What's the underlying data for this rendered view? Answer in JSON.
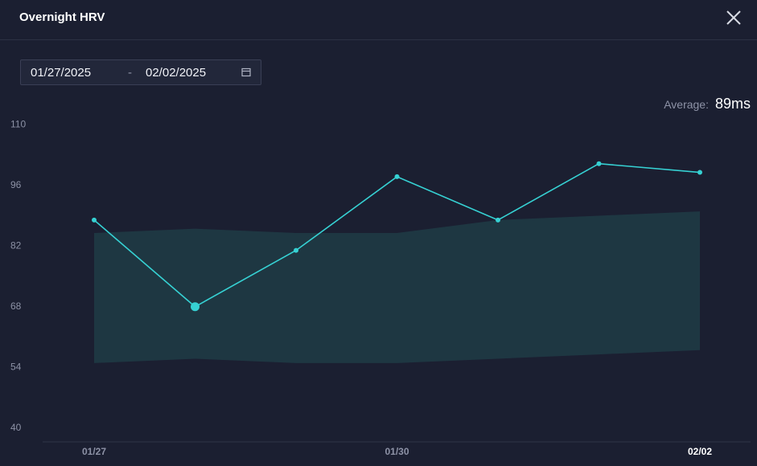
{
  "header": {
    "title": "Overnight HRV"
  },
  "date_range": {
    "start": "01/27/2025",
    "separator": "-",
    "end": "02/02/2025"
  },
  "average": {
    "label": "Average:",
    "value": "89ms"
  },
  "chart_data": {
    "type": "line",
    "categories": [
      "01/27",
      null,
      null,
      "01/30",
      null,
      null,
      "02/02"
    ],
    "values": [
      88,
      68,
      81,
      98,
      88,
      101,
      99
    ],
    "band_high": [
      85,
      86,
      85,
      85,
      88,
      89,
      90
    ],
    "band_low": [
      55,
      56,
      55,
      55,
      56,
      57,
      58
    ],
    "color": "#36d1d3",
    "band_color": "#1f3a45",
    "highlight_index": 1,
    "ylim": [
      37,
      113
    ],
    "yticks": [
      40,
      54,
      68,
      82,
      96,
      110
    ]
  }
}
